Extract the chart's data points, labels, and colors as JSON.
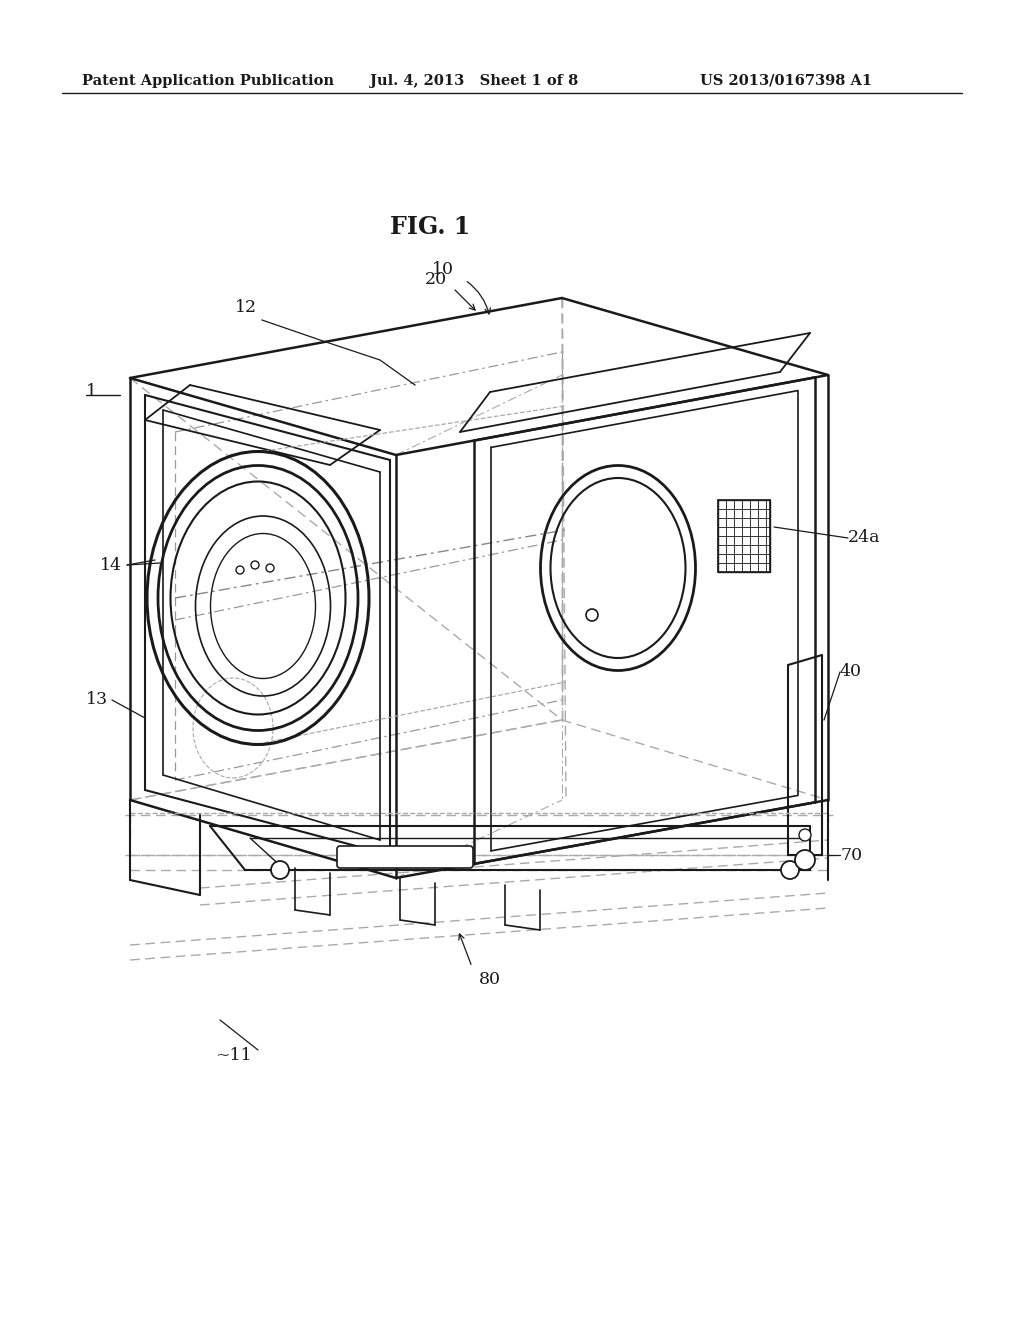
{
  "header_left": "Patent Application Publication",
  "header_mid": "Jul. 4, 2013   Sheet 1 of 8",
  "header_right": "US 2013/0167398 A1",
  "fig_label": "FIG. 1",
  "bg_color": "#ffffff",
  "lc": "#1a1a1a",
  "gray": "#888888",
  "lightgray": "#aaaaaa",
  "header_fontsize": 10.5,
  "label_fontsize": 12.5,
  "fig_fontsize": 17
}
